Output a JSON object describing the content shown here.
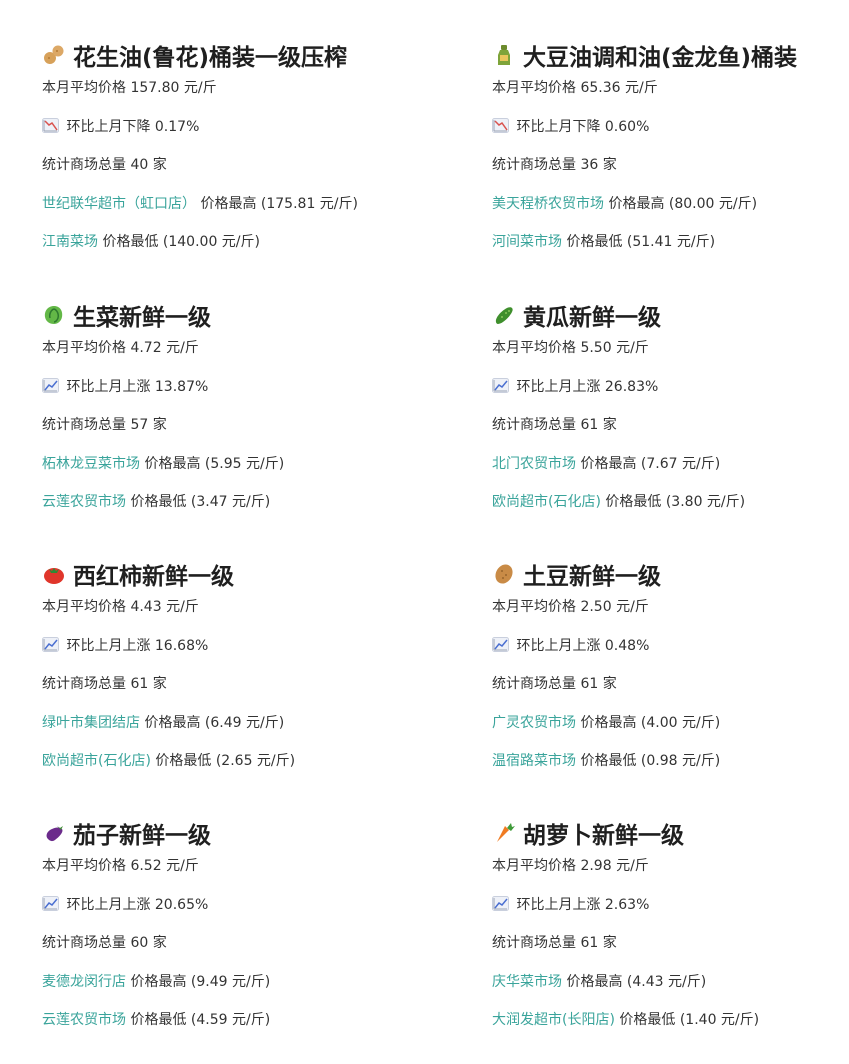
{
  "colors": {
    "text": "#333333",
    "title": "#1f1f1f",
    "link": "#3aa49b",
    "down_icon_line": "#d9534f",
    "up_icon_line": "#4a6fd1"
  },
  "labels": {
    "avg_prefix": "本月平均价格",
    "stores_prefix": "统计商场总量",
    "stores_suffix": "家",
    "highest_label": "价格最高",
    "lowest_label": "价格最低"
  },
  "items": [
    {
      "icon": "peanut-icon",
      "title": "花生油(鲁花)桶装一级压榨",
      "avg_price": "157.80 元/斤",
      "trend": "down",
      "trend_text": "环比上月下降 0.17%",
      "store_count": "40",
      "highest_store": "世纪联华超市（虹口店）",
      "highest_price": "(175.81 元/斤)",
      "lowest_store": "江南菜场",
      "lowest_price": "(140.00 元/斤)"
    },
    {
      "icon": "bottle-icon",
      "title": "大豆油调和油(金龙鱼)桶装",
      "avg_price": "65.36 元/斤",
      "trend": "down",
      "trend_text": "环比上月下降 0.60%",
      "store_count": "36",
      "highest_store": "美天程桥农贸市场",
      "highest_price": "(80.00 元/斤)",
      "lowest_store": "河间菜市场",
      "lowest_price": "(51.41 元/斤)"
    },
    {
      "icon": "lettuce-icon",
      "title": "生菜新鲜一级",
      "avg_price": "4.72 元/斤",
      "trend": "up",
      "trend_text": "环比上月上涨 13.87%",
      "store_count": "57",
      "highest_store": "柘林龙豆菜市场",
      "highest_price": "(5.95 元/斤)",
      "lowest_store": "云莲农贸市场",
      "lowest_price": "(3.47 元/斤)"
    },
    {
      "icon": "cucumber-icon",
      "title": "黄瓜新鲜一级",
      "avg_price": "5.50 元/斤",
      "trend": "up",
      "trend_text": "环比上月上涨 26.83%",
      "store_count": "61",
      "highest_store": "北门农贸市场",
      "highest_price": "(7.67 元/斤)",
      "lowest_store": "欧尚超市(石化店)",
      "lowest_price": "(3.80 元/斤)"
    },
    {
      "icon": "tomato-icon",
      "title": "西红柿新鲜一级",
      "avg_price": "4.43 元/斤",
      "trend": "up",
      "trend_text": "环比上月上涨 16.68%",
      "store_count": "61",
      "highest_store": "绿叶市集团结店",
      "highest_price": "(6.49 元/斤)",
      "lowest_store": "欧尚超市(石化店)",
      "lowest_price": "(2.65 元/斤)"
    },
    {
      "icon": "potato-icon",
      "title": "土豆新鲜一级",
      "avg_price": "2.50 元/斤",
      "trend": "up",
      "trend_text": "环比上月上涨 0.48%",
      "store_count": "61",
      "highest_store": "广灵农贸市场",
      "highest_price": "(4.00 元/斤)",
      "lowest_store": "温宿路菜市场",
      "lowest_price": "(0.98 元/斤)"
    },
    {
      "icon": "eggplant-icon",
      "title": "茄子新鲜一级",
      "avg_price": "6.52 元/斤",
      "trend": "up",
      "trend_text": "环比上月上涨 20.65%",
      "store_count": "60",
      "highest_store": "麦德龙闵行店",
      "highest_price": "(9.49 元/斤)",
      "lowest_store": "云莲农贸市场",
      "lowest_price": "(4.59 元/斤)"
    },
    {
      "icon": "carrot-icon",
      "title": "胡萝卜新鲜一级",
      "avg_price": "2.98 元/斤",
      "trend": "up",
      "trend_text": "环比上月上涨 2.63%",
      "store_count": "61",
      "highest_store": "庆华菜市场",
      "highest_price": "(4.43 元/斤)",
      "lowest_store": "大润发超市(长阳店)",
      "lowest_price": "(1.40 元/斤)"
    }
  ]
}
